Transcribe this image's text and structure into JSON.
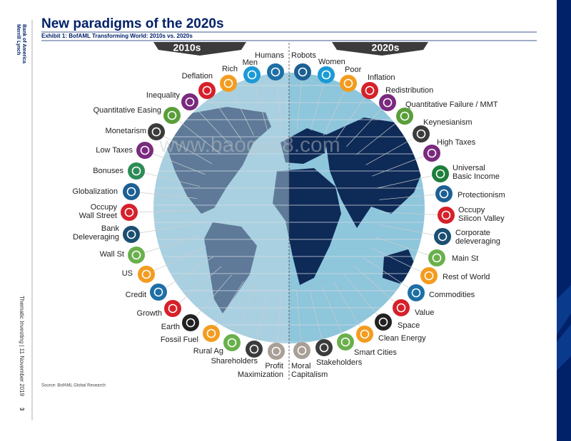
{
  "sidebar": {
    "brand": [
      "Bank of America",
      "Merrill Lynch"
    ],
    "footer": "Thematic Investing | 11 November 2019",
    "page": "3"
  },
  "header": {
    "title": "New paradigms of the 2020s",
    "exhibit": "Exhibit 1: BofAML Transforming World: 2010s vs. 2020s"
  },
  "watermark": "www.baogao8.com",
  "columns": {
    "left": "2010s",
    "right": "2020s"
  },
  "left_items": [
    {
      "label": [
        "Humans"
      ]
    },
    {
      "label": [
        "Men"
      ]
    },
    {
      "label": [
        "Rich"
      ]
    },
    {
      "label": [
        "Deflation"
      ]
    },
    {
      "label": [
        "Inequality"
      ]
    },
    {
      "label": [
        "Quantitative Easing"
      ]
    },
    {
      "label": [
        "Monetarism"
      ]
    },
    {
      "label": [
        "Low Taxes"
      ]
    },
    {
      "label": [
        "Bonuses"
      ]
    },
    {
      "label": [
        "Globalization"
      ]
    },
    {
      "label": [
        "Occupy",
        "Wall Street"
      ]
    },
    {
      "label": [
        "Bank",
        "Deleveraging"
      ]
    },
    {
      "label": [
        "Wall St"
      ]
    },
    {
      "label": [
        "US"
      ]
    },
    {
      "label": [
        "Credit"
      ]
    },
    {
      "label": [
        "Growth"
      ]
    },
    {
      "label": [
        "Earth"
      ]
    },
    {
      "label": [
        "Fossil Fuel"
      ]
    },
    {
      "label": [
        "Rural Ag"
      ]
    },
    {
      "label": [
        "Shareholders"
      ]
    },
    {
      "label": [
        "Profit",
        "Maximization"
      ]
    }
  ],
  "right_items": [
    {
      "label": [
        "Robots"
      ]
    },
    {
      "label": [
        "Women"
      ]
    },
    {
      "label": [
        "Poor"
      ]
    },
    {
      "label": [
        "Inflation"
      ]
    },
    {
      "label": [
        "Redistribution"
      ]
    },
    {
      "label": [
        "Quantitative Failure / MMT"
      ]
    },
    {
      "label": [
        "Keynesianism"
      ]
    },
    {
      "label": [
        "High Taxes"
      ]
    },
    {
      "label": [
        "Universal",
        "Basic Income"
      ]
    },
    {
      "label": [
        "Protectionism"
      ]
    },
    {
      "label": [
        "Occupy",
        "Silicon Valley"
      ]
    },
    {
      "label": [
        "Corporate",
        "deleveraging"
      ]
    },
    {
      "label": [
        "Main St"
      ]
    },
    {
      "label": [
        "Rest of World"
      ]
    },
    {
      "label": [
        "Commodities"
      ]
    },
    {
      "label": [
        "Value"
      ]
    },
    {
      "label": [
        "Space"
      ]
    },
    {
      "label": [
        "Clean Energy"
      ]
    },
    {
      "label": [
        "Smart Cities"
      ]
    },
    {
      "label": [
        "Stakeholders"
      ]
    },
    {
      "label": [
        "Moral",
        "Capitalism"
      ]
    }
  ],
  "source": "Source: BofAML Global Research"
}
